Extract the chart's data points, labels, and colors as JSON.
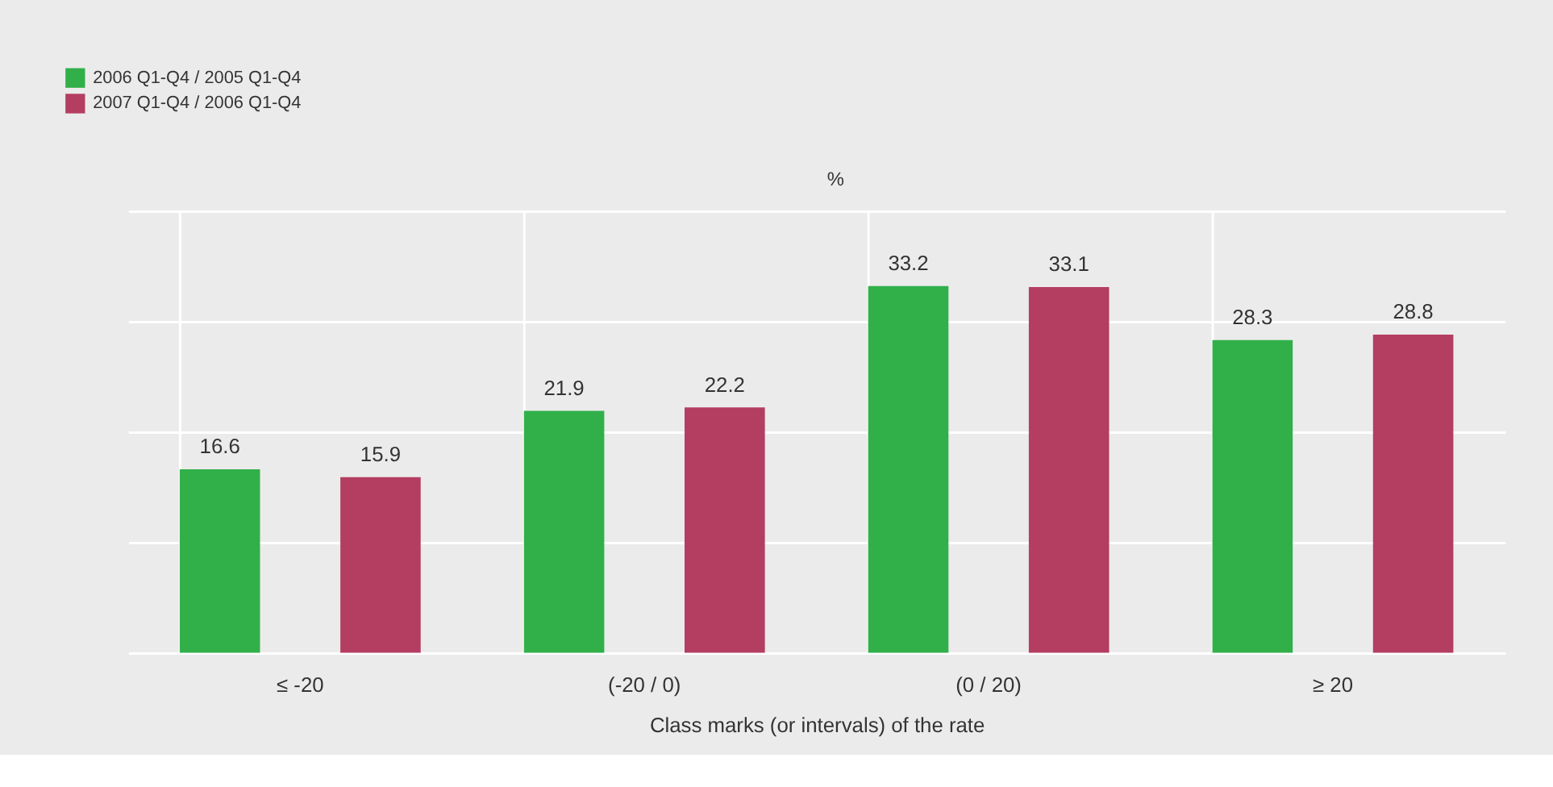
{
  "chart_data": {
    "type": "bar",
    "ylabel": "%",
    "xlabel": "Class marks (or intervals) of the rate",
    "categories": [
      "≤ -20",
      "(-20 / 0)",
      "(0 / 20)",
      "≥ 20"
    ],
    "series": [
      {
        "name": "2006 Q1-Q4 / 2005 Q1-Q4",
        "color": "#31b04a",
        "values": [
          16.6,
          21.9,
          33.2,
          28.3
        ]
      },
      {
        "name": "2007 Q1-Q4 / 2006 Q1-Q4",
        "color": "#b43d62",
        "values": [
          15.9,
          22.2,
          33.1,
          28.8
        ]
      }
    ],
    "ylim": [
      0,
      40
    ],
    "tick_labels": "x",
    "grid": true,
    "legend": "top left",
    "data_labels": true
  }
}
